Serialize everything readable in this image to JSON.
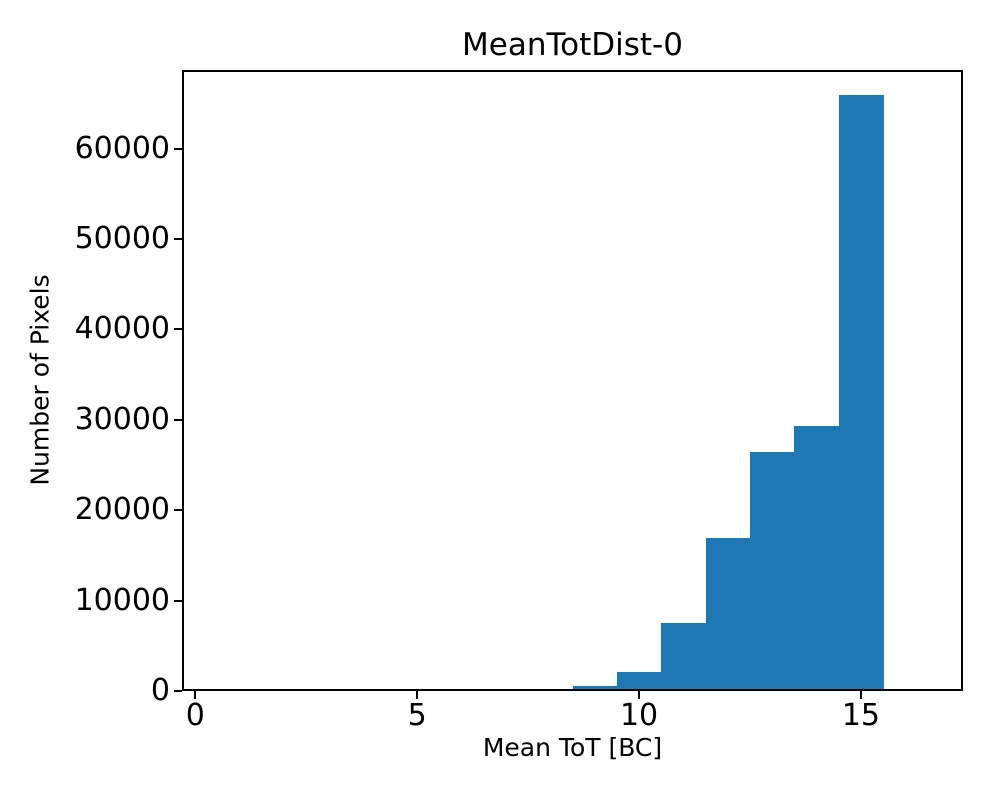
{
  "chart_data": {
    "type": "bar",
    "subtype": "histogram",
    "title": "MeanTotDist-0",
    "xlabel": "Mean ToT [BC]",
    "ylabel": "Number of Pixels",
    "xlim": [
      -0.3,
      17.3
    ],
    "ylim": [
      0,
      68700
    ],
    "x_ticks": [
      0,
      5,
      10,
      15
    ],
    "y_ticks": [
      0,
      10000,
      20000,
      30000,
      40000,
      50000,
      60000
    ],
    "bin_edges": [
      8.5,
      9.5,
      10.5,
      11.5,
      12.5,
      13.5,
      14.5,
      15.5
    ],
    "counts": [
      330,
      1900,
      7350,
      16750,
      26250,
      29050,
      65700
    ],
    "bar_color": "#1f77b4",
    "background_color": "#ffffff",
    "spine_color": "#000000",
    "grid": false,
    "legend": false
  }
}
